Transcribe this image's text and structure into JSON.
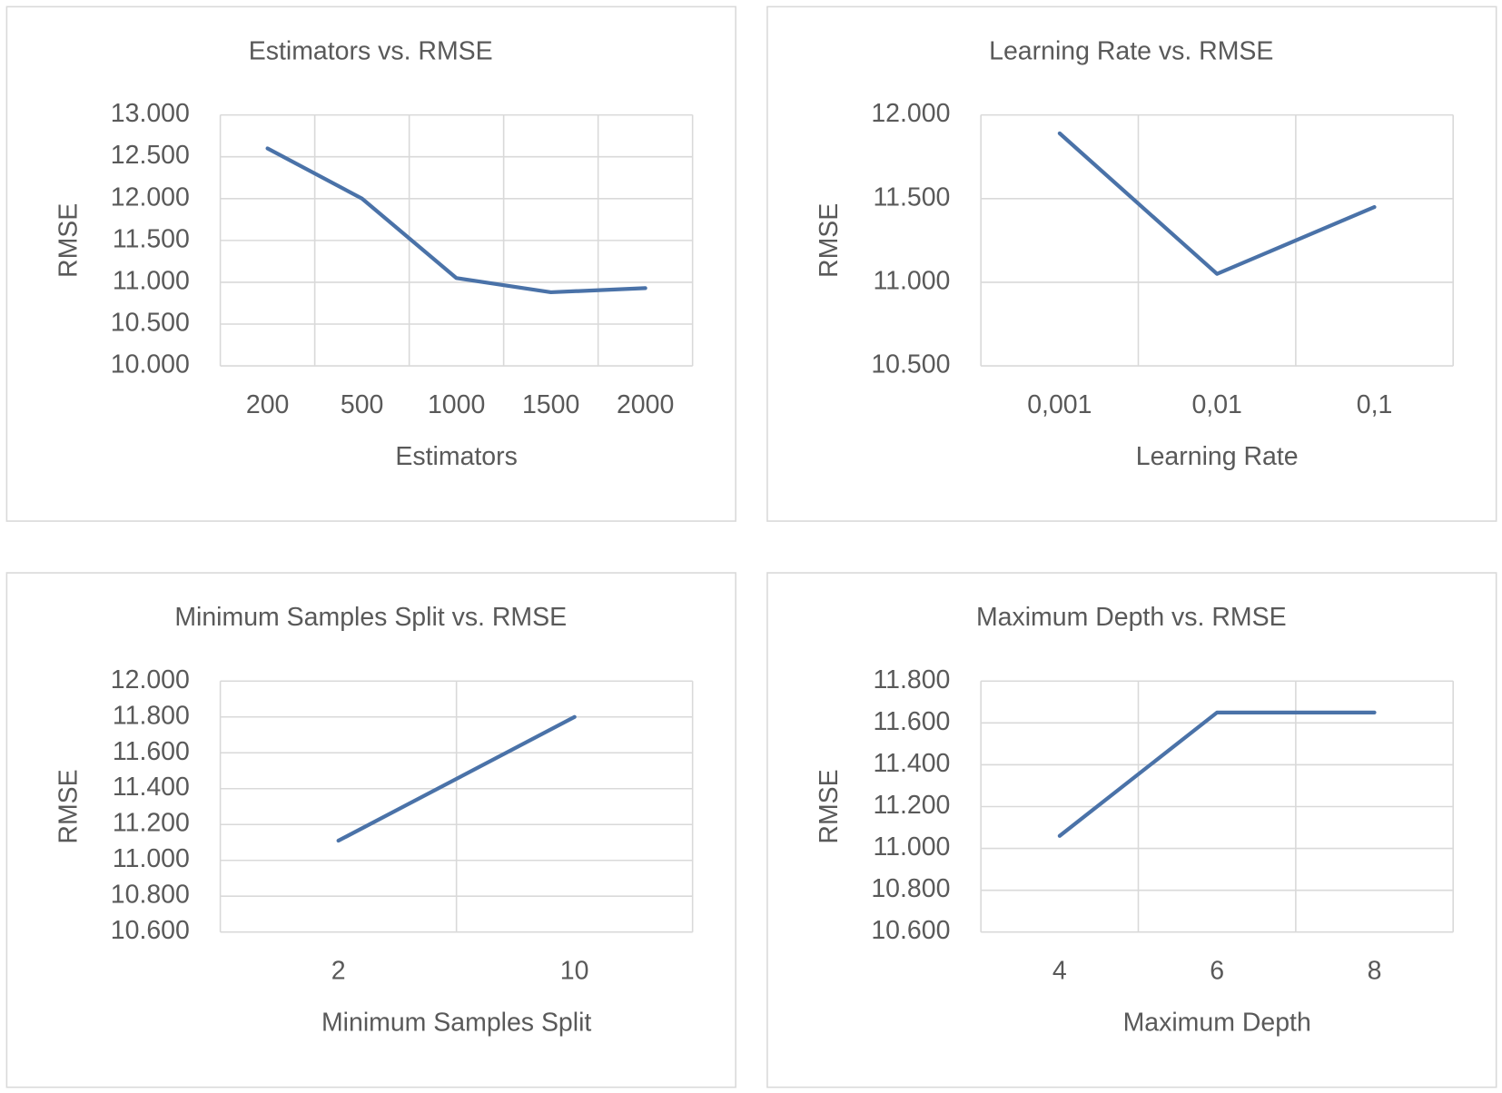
{
  "chart_data": [
    {
      "type": "line",
      "title": "Estimators vs. RMSE",
      "x_label": "Estimators",
      "y_label": "RMSE",
      "categories": [
        "200",
        "500",
        "1000",
        "1500",
        "2000"
      ],
      "values": [
        12.6,
        12.0,
        11.05,
        10.88,
        10.93
      ],
      "color": "#4a72a8",
      "ylim": [
        10,
        13
      ],
      "yticks": [
        {
          "value": 10,
          "label": "10.000"
        },
        {
          "value": 10.5,
          "label": "10.500"
        },
        {
          "value": 11,
          "label": "11.000"
        },
        {
          "value": 11.5,
          "label": "11.500"
        },
        {
          "value": 12,
          "label": "12.000"
        },
        {
          "value": 12.5,
          "label": "12.500"
        },
        {
          "value": 13,
          "label": "13.000"
        }
      ],
      "grid": true
    },
    {
      "type": "line",
      "title": "Learning Rate vs. RMSE",
      "x_label": "Learning Rate",
      "y_label": "RMSE",
      "categories": [
        "0,001",
        "0,01",
        "0,1"
      ],
      "values": [
        11.89,
        11.05,
        11.45
      ],
      "color": "#4a72a8",
      "ylim": [
        10.5,
        12
      ],
      "yticks": [
        {
          "value": 10.5,
          "label": "10.500"
        },
        {
          "value": 11,
          "label": "11.000"
        },
        {
          "value": 11.5,
          "label": "11.500"
        },
        {
          "value": 12,
          "label": "12.000"
        }
      ],
      "grid": true
    },
    {
      "type": "line",
      "title": "Minimum Samples Split vs. RMSE",
      "x_label": "Minimum Samples Split",
      "y_label": "RMSE",
      "categories": [
        "2",
        "10"
      ],
      "values": [
        11.11,
        11.8
      ],
      "color": "#4a72a8",
      "ylim": [
        10.6,
        12
      ],
      "yticks": [
        {
          "value": 10.6,
          "label": "10.600"
        },
        {
          "value": 10.8,
          "label": "10.800"
        },
        {
          "value": 11,
          "label": "11.000"
        },
        {
          "value": 11.2,
          "label": "11.200"
        },
        {
          "value": 11.4,
          "label": "11.400"
        },
        {
          "value": 11.6,
          "label": "11.600"
        },
        {
          "value": 11.8,
          "label": "11.800"
        },
        {
          "value": 12,
          "label": "12.000"
        }
      ],
      "grid": true
    },
    {
      "type": "line",
      "title": "Maximum Depth vs. RMSE",
      "x_label": "Maximum Depth",
      "y_label": "RMSE",
      "categories": [
        "4",
        "6",
        "8"
      ],
      "values": [
        11.06,
        11.65,
        11.65
      ],
      "color": "#4a72a8",
      "ylim": [
        10.6,
        11.8
      ],
      "yticks": [
        {
          "value": 10.6,
          "label": "10.600"
        },
        {
          "value": 10.8,
          "label": "10.800"
        },
        {
          "value": 11,
          "label": "11.000"
        },
        {
          "value": 11.2,
          "label": "11.200"
        },
        {
          "value": 11.4,
          "label": "11.400"
        },
        {
          "value": 11.6,
          "label": "11.600"
        },
        {
          "value": 11.8,
          "label": "11.800"
        }
      ],
      "grid": true
    }
  ]
}
